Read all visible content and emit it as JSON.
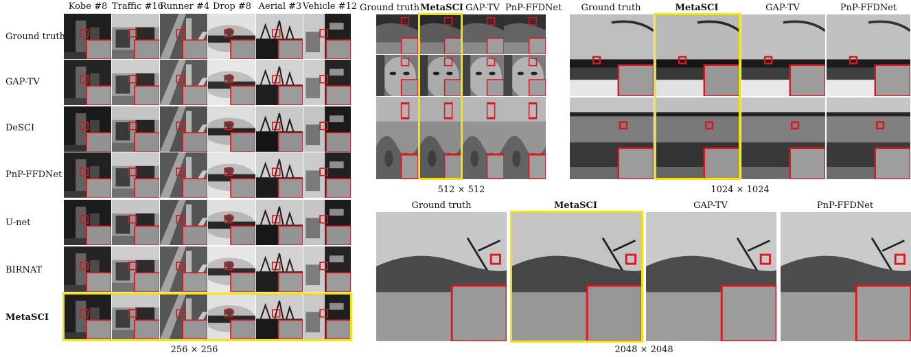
{
  "panel_256": {
    "columns": [
      "Kobe #8",
      "Traffic #16",
      "Runner #4",
      "Drop #8",
      "Aerial #3",
      "Vehicle #12"
    ],
    "rows": [
      "Ground truth",
      "GAP-TV",
      "DeSCI",
      "PnP-FFDNet",
      "U-net",
      "BIRNAT",
      "MetaSCI"
    ],
    "caption": "256 × 256"
  },
  "panel_512": {
    "columns": [
      "Ground truth",
      "MetaSCI",
      "GAP-TV",
      "PnP-FFDNet"
    ],
    "caption": "512 × 512"
  },
  "panel_1024": {
    "columns": [
      "Ground truth",
      "MetaSCI",
      "GAP-TV",
      "PnP-FFDNet"
    ],
    "caption": "1024 × 1024"
  },
  "panel_2048": {
    "columns": [
      "Ground truth",
      "MetaSCI",
      "GAP-TV",
      "PnP-FFDNet"
    ],
    "caption": "2048 × 2048"
  },
  "colors": {
    "highlight": "#f3e20e",
    "zoom_box": "#e0141c"
  }
}
